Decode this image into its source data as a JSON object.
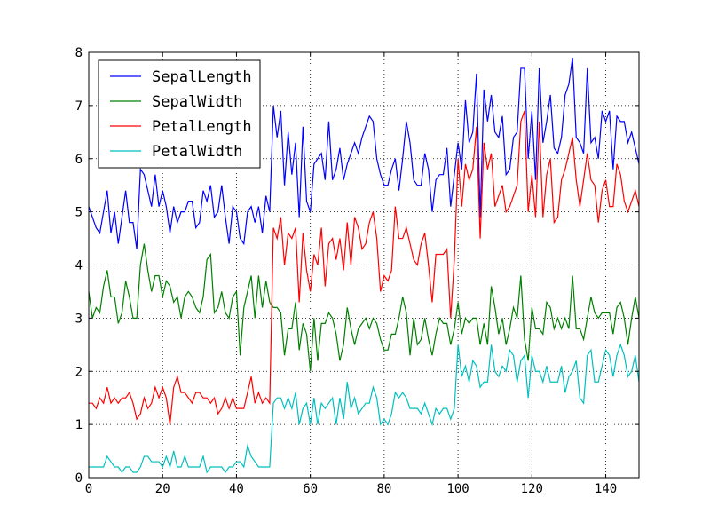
{
  "chart_data": {
    "type": "line",
    "title": "",
    "xlabel": "",
    "ylabel": "",
    "xlim": [
      0,
      149
    ],
    "ylim": [
      0,
      8
    ],
    "xticks": [
      0,
      20,
      40,
      60,
      80,
      100,
      120,
      140
    ],
    "yticks": [
      0,
      1,
      2,
      3,
      4,
      5,
      6,
      7,
      8
    ],
    "grid": true,
    "legend_position": "top-left",
    "series": [
      {
        "name": "SepalLength",
        "color": "#0000ff",
        "values": [
          5.1,
          4.9,
          4.7,
          4.6,
          5.0,
          5.4,
          4.6,
          5.0,
          4.4,
          4.9,
          5.4,
          4.8,
          4.8,
          4.3,
          5.8,
          5.7,
          5.4,
          5.1,
          5.7,
          5.1,
          5.4,
          5.1,
          4.6,
          5.1,
          4.8,
          5.0,
          5.0,
          5.2,
          5.2,
          4.7,
          4.8,
          5.4,
          5.2,
          5.5,
          4.9,
          5.0,
          5.5,
          4.9,
          4.4,
          5.1,
          5.0,
          4.5,
          4.4,
          5.0,
          5.1,
          4.8,
          5.1,
          4.6,
          5.3,
          5.0,
          7.0,
          6.4,
          6.9,
          5.5,
          6.5,
          5.7,
          6.3,
          4.9,
          6.6,
          5.2,
          5.0,
          5.9,
          6.0,
          6.1,
          5.6,
          6.7,
          5.6,
          5.8,
          6.2,
          5.6,
          5.9,
          6.1,
          6.3,
          6.1,
          6.4,
          6.6,
          6.8,
          6.7,
          6.0,
          5.7,
          5.5,
          5.5,
          5.8,
          6.0,
          5.4,
          6.0,
          6.7,
          6.3,
          5.6,
          5.5,
          5.5,
          6.1,
          5.8,
          5.0,
          5.6,
          5.7,
          5.7,
          6.2,
          5.1,
          5.7,
          6.3,
          5.8,
          7.1,
          6.3,
          6.5,
          7.6,
          4.9,
          7.3,
          6.7,
          7.2,
          6.5,
          6.4,
          6.8,
          5.7,
          5.8,
          6.4,
          6.5,
          7.7,
          7.7,
          6.0,
          6.9,
          5.6,
          7.7,
          6.3,
          6.7,
          7.2,
          6.2,
          6.1,
          6.4,
          7.2,
          7.4,
          7.9,
          6.4,
          6.3,
          6.1,
          7.7,
          6.3,
          6.4,
          6.0,
          6.9,
          6.7,
          6.9,
          5.8,
          6.8,
          6.7,
          6.7,
          6.3,
          6.5,
          6.2,
          5.9
        ]
      },
      {
        "name": "SepalWidth",
        "color": "#008000",
        "values": [
          3.5,
          3.0,
          3.2,
          3.1,
          3.6,
          3.9,
          3.4,
          3.4,
          2.9,
          3.1,
          3.7,
          3.4,
          3.0,
          3.0,
          4.0,
          4.4,
          3.9,
          3.5,
          3.8,
          3.8,
          3.4,
          3.7,
          3.6,
          3.3,
          3.4,
          3.0,
          3.4,
          3.5,
          3.4,
          3.2,
          3.1,
          3.4,
          4.1,
          4.2,
          3.1,
          3.2,
          3.5,
          3.1,
          3.0,
          3.4,
          3.5,
          2.3,
          3.2,
          3.5,
          3.8,
          3.0,
          3.8,
          3.2,
          3.7,
          3.3,
          3.2,
          3.2,
          3.1,
          2.3,
          2.8,
          2.8,
          3.3,
          2.4,
          2.9,
          2.7,
          2.0,
          3.0,
          2.2,
          2.9,
          2.9,
          3.1,
          3.0,
          2.7,
          2.2,
          2.5,
          3.2,
          2.8,
          2.5,
          2.8,
          2.9,
          3.0,
          2.8,
          3.0,
          2.9,
          2.6,
          2.4,
          2.4,
          2.7,
          2.7,
          3.0,
          3.4,
          3.1,
          2.3,
          3.0,
          2.5,
          2.6,
          3.0,
          2.6,
          2.3,
          2.7,
          3.0,
          2.9,
          2.9,
          2.5,
          2.8,
          3.3,
          2.7,
          3.0,
          2.9,
          3.0,
          3.0,
          2.5,
          2.9,
          2.5,
          3.6,
          3.2,
          2.7,
          3.0,
          2.5,
          2.8,
          3.2,
          3.0,
          3.8,
          2.6,
          2.2,
          3.2,
          2.8,
          2.8,
          2.7,
          3.3,
          3.2,
          2.8,
          3.0,
          2.8,
          3.0,
          2.8,
          3.8,
          2.8,
          2.8,
          2.6,
          3.0,
          3.4,
          3.1,
          3.0,
          3.1,
          3.1,
          3.1,
          2.7,
          3.2,
          3.3,
          3.0,
          2.5,
          3.0,
          3.4,
          3.0
        ]
      },
      {
        "name": "PetalLength",
        "color": "#ff0000",
        "values": [
          1.4,
          1.4,
          1.3,
          1.5,
          1.4,
          1.7,
          1.4,
          1.5,
          1.4,
          1.5,
          1.5,
          1.6,
          1.4,
          1.1,
          1.2,
          1.5,
          1.3,
          1.4,
          1.7,
          1.5,
          1.7,
          1.5,
          1.0,
          1.7,
          1.9,
          1.6,
          1.6,
          1.5,
          1.4,
          1.6,
          1.6,
          1.5,
          1.5,
          1.4,
          1.5,
          1.2,
          1.3,
          1.5,
          1.3,
          1.5,
          1.3,
          1.3,
          1.3,
          1.6,
          1.9,
          1.4,
          1.6,
          1.4,
          1.5,
          1.4,
          4.7,
          4.5,
          4.9,
          4.0,
          4.6,
          4.5,
          4.7,
          3.3,
          4.6,
          3.9,
          3.5,
          4.2,
          4.0,
          4.7,
          3.6,
          4.4,
          4.5,
          4.1,
          4.5,
          3.9,
          4.8,
          4.0,
          4.9,
          4.7,
          4.3,
          4.4,
          4.8,
          5.0,
          4.5,
          3.5,
          3.8,
          3.7,
          3.9,
          5.1,
          4.5,
          4.5,
          4.7,
          4.4,
          4.1,
          4.0,
          4.4,
          4.6,
          4.0,
          3.3,
          4.2,
          4.2,
          4.2,
          4.3,
          3.0,
          4.1,
          6.0,
          5.1,
          5.9,
          5.6,
          5.8,
          6.6,
          4.5,
          6.3,
          5.8,
          6.1,
          5.1,
          5.3,
          5.5,
          5.0,
          5.1,
          5.3,
          5.5,
          6.7,
          6.9,
          5.0,
          5.7,
          4.9,
          6.7,
          4.9,
          5.7,
          6.0,
          4.8,
          4.9,
          5.6,
          5.8,
          6.1,
          6.4,
          5.6,
          5.1,
          5.6,
          6.1,
          5.6,
          5.5,
          4.8,
          5.4,
          5.6,
          5.1,
          5.1,
          5.9,
          5.7,
          5.2,
          5.0,
          5.2,
          5.4,
          5.1
        ]
      },
      {
        "name": "PetalWidth",
        "color": "#00bfbf",
        "values": [
          0.2,
          0.2,
          0.2,
          0.2,
          0.2,
          0.4,
          0.3,
          0.2,
          0.2,
          0.1,
          0.2,
          0.2,
          0.1,
          0.1,
          0.2,
          0.4,
          0.4,
          0.3,
          0.3,
          0.3,
          0.2,
          0.4,
          0.2,
          0.5,
          0.2,
          0.2,
          0.4,
          0.2,
          0.2,
          0.2,
          0.2,
          0.4,
          0.1,
          0.2,
          0.2,
          0.2,
          0.2,
          0.1,
          0.2,
          0.2,
          0.3,
          0.3,
          0.2,
          0.6,
          0.4,
          0.3,
          0.2,
          0.2,
          0.2,
          0.2,
          1.4,
          1.5,
          1.5,
          1.3,
          1.5,
          1.3,
          1.6,
          1.0,
          1.3,
          1.4,
          1.0,
          1.5,
          1.0,
          1.4,
          1.3,
          1.4,
          1.5,
          1.0,
          1.5,
          1.1,
          1.8,
          1.3,
          1.5,
          1.2,
          1.3,
          1.4,
          1.4,
          1.7,
          1.5,
          1.0,
          1.1,
          1.0,
          1.2,
          1.6,
          1.5,
          1.6,
          1.5,
          1.3,
          1.3,
          1.3,
          1.2,
          1.4,
          1.2,
          1.0,
          1.3,
          1.2,
          1.3,
          1.3,
          1.1,
          1.3,
          2.5,
          1.9,
          2.1,
          1.8,
          2.2,
          2.1,
          1.7,
          1.8,
          1.8,
          2.5,
          2.0,
          1.9,
          2.1,
          2.0,
          2.4,
          2.3,
          1.8,
          2.2,
          2.3,
          1.5,
          2.3,
          2.0,
          2.0,
          1.8,
          2.1,
          1.8,
          1.8,
          1.8,
          2.1,
          1.6,
          1.9,
          2.0,
          2.2,
          1.5,
          1.4,
          2.3,
          2.4,
          1.8,
          1.8,
          2.1,
          2.4,
          2.3,
          1.9,
          2.3,
          2.5,
          2.3,
          1.9,
          2.0,
          2.3,
          1.8
        ]
      }
    ]
  }
}
